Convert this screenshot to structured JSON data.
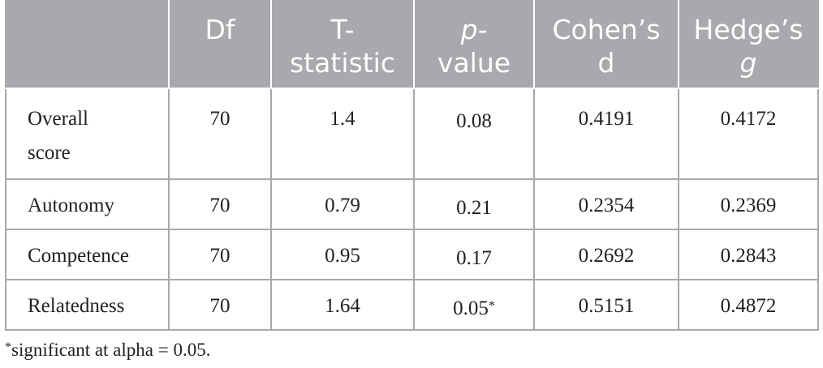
{
  "table": {
    "headers": [
      {
        "text": "",
        "italic_part": ""
      },
      {
        "text": "Df",
        "italic_part": ""
      },
      {
        "text": "T-\nstatistic",
        "italic_part": ""
      },
      {
        "text": "\nvalue",
        "italic_part": "p-"
      },
      {
        "text": "Cohen’s\nd",
        "italic_part": ""
      },
      {
        "text": "Hedge’s\n",
        "italic_part": "g"
      }
    ],
    "rows": [
      {
        "label": "Overall\nscore",
        "df": "70",
        "t": "1.4",
        "p": "0.08",
        "p_mark": "",
        "d": "0.4191",
        "g": "0.4172"
      },
      {
        "label": "Autonomy",
        "df": "70",
        "t": "0.79",
        "p": "0.21",
        "p_mark": "",
        "d": "0.2354",
        "g": "0.2369"
      },
      {
        "label": "Competence",
        "df": "70",
        "t": "0.95",
        "p": "0.17",
        "p_mark": "",
        "d": "0.2692",
        "g": "0.2843"
      },
      {
        "label": "Relatedness",
        "df": "70",
        "t": "1.64",
        "p": "0.05",
        "p_mark": "*",
        "d": "0.5151",
        "g": "0.4872"
      }
    ],
    "colors": {
      "header_bg": "#a7a9ac",
      "header_text": "#ffffff",
      "border": "#a7a9ac",
      "body_text": "#231f20"
    }
  },
  "footnote": {
    "mark": "*",
    "text": "significant at alpha = 0.05."
  }
}
